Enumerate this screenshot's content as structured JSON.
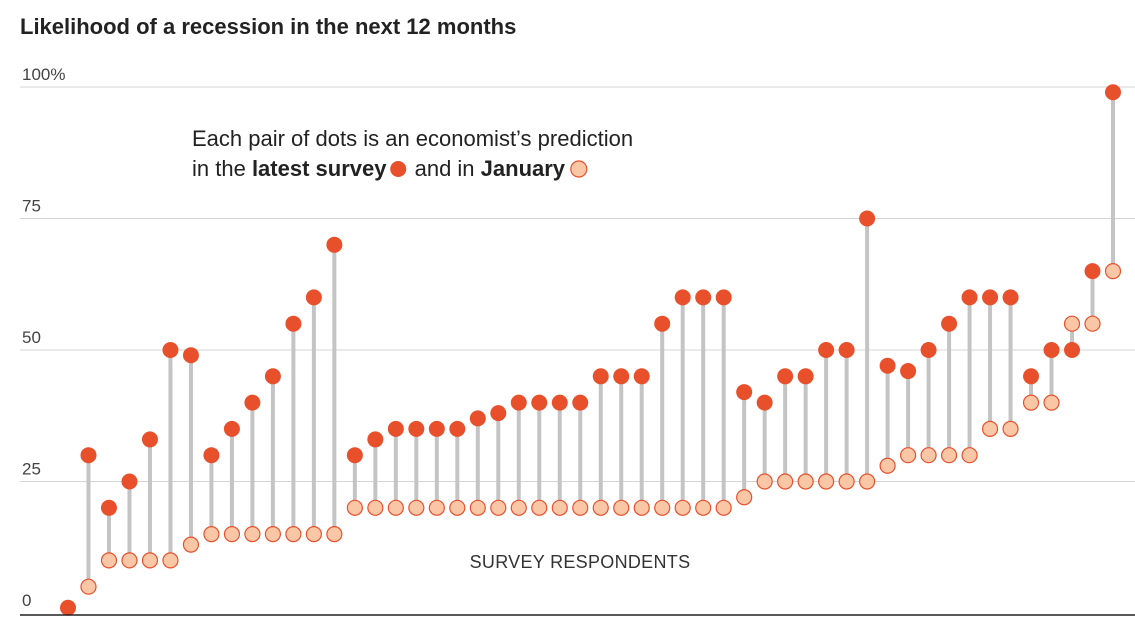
{
  "colors": {
    "latest": "#e8502c",
    "january_fill": "#f9c6a6",
    "january_stroke": "#e8502c",
    "stem": "#c4c4c4",
    "grid": "#d4d4d4",
    "axis": "#222222"
  },
  "legend_note": {
    "line1": "Each pair of dots is an economist’s prediction",
    "line2_prefix": "in the ",
    "latest_label": "latest survey",
    "middle": " and in ",
    "january_label": "January"
  },
  "chart_data": {
    "type": "dot-pair",
    "title": "Likelihood of a recession in the next 12 months",
    "xlabel": "SURVEY RESPONDENTS",
    "ylabel": "",
    "ylim": [
      0,
      100
    ],
    "y_ticks": [
      {
        "value": 0,
        "label": "0"
      },
      {
        "value": 25,
        "label": "25"
      },
      {
        "value": 50,
        "label": "50"
      },
      {
        "value": 75,
        "label": "75"
      },
      {
        "value": 100,
        "label": "100%"
      }
    ],
    "grid": true,
    "series": [
      {
        "name": "latest survey",
        "values": [
          1,
          30,
          20,
          25,
          33,
          50,
          49,
          30,
          35,
          40,
          45,
          55,
          60,
          70,
          30,
          33,
          35,
          35,
          35,
          35,
          37,
          38,
          40,
          40,
          40,
          40,
          45,
          45,
          45,
          55,
          60,
          60,
          60,
          42,
          40,
          45,
          45,
          50,
          50,
          75,
          47,
          46,
          50,
          55,
          60,
          60,
          60,
          45,
          50,
          50,
          65,
          99
        ]
      },
      {
        "name": "January",
        "values": [
          null,
          5,
          10,
          10,
          10,
          10,
          13,
          15,
          15,
          15,
          15,
          15,
          15,
          15,
          20,
          20,
          20,
          20,
          20,
          20,
          20,
          20,
          20,
          20,
          20,
          20,
          20,
          20,
          20,
          20,
          20,
          20,
          20,
          22,
          25,
          25,
          25,
          25,
          25,
          25,
          28,
          30,
          30,
          30,
          30,
          35,
          35,
          40,
          40,
          55,
          55,
          65
        ]
      }
    ]
  }
}
